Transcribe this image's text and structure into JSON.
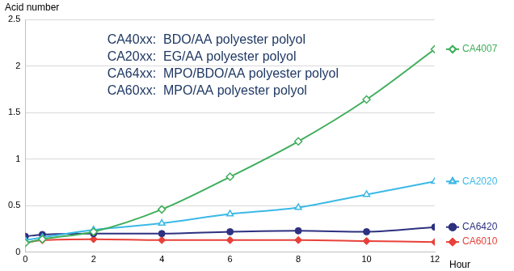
{
  "chart_data": {
    "type": "line",
    "x_label": "Hour",
    "y_label": "Acid number",
    "annotations": [
      "CA40xx:  BDO/AA polyester polyol",
      "CA20xx:  EG/AA polyester polyol",
      "CA64xx:  MPO/BDO/AA polyester polyol",
      "CA60xx:  MPO/AA polyester polyol"
    ],
    "x": [
      0,
      0.5,
      2,
      4,
      6,
      8,
      10,
      12
    ],
    "series": [
      {
        "name": "CA4007",
        "color": "#3fae5a",
        "marker": "diamond-open",
        "values": [
          0.1,
          0.14,
          0.22,
          0.46,
          0.81,
          1.19,
          1.64,
          2.18
        ]
      },
      {
        "name": "CA2020",
        "color": "#3bb9e6",
        "marker": "triangle-open",
        "values": [
          0.13,
          0.16,
          0.24,
          0.31,
          0.41,
          0.48,
          0.62,
          0.76
        ]
      },
      {
        "name": "CA6420",
        "color": "#2e3180",
        "marker": "circle",
        "values": [
          0.17,
          0.19,
          0.2,
          0.2,
          0.22,
          0.23,
          0.22,
          0.27
        ]
      },
      {
        "name": "CA6010",
        "color": "#e8413a",
        "marker": "diamond",
        "values": [
          0.1,
          0.13,
          0.14,
          0.13,
          0.13,
          0.13,
          0.12,
          0.11
        ]
      }
    ],
    "xlim": [
      0,
      12
    ],
    "xticks": [
      0,
      2,
      4,
      6,
      8,
      10,
      12
    ],
    "ylim": [
      0,
      2.5
    ],
    "yticks": [
      0,
      0.5,
      1,
      1.5,
      2,
      2.5
    ],
    "grid": "y",
    "legend": "right"
  }
}
